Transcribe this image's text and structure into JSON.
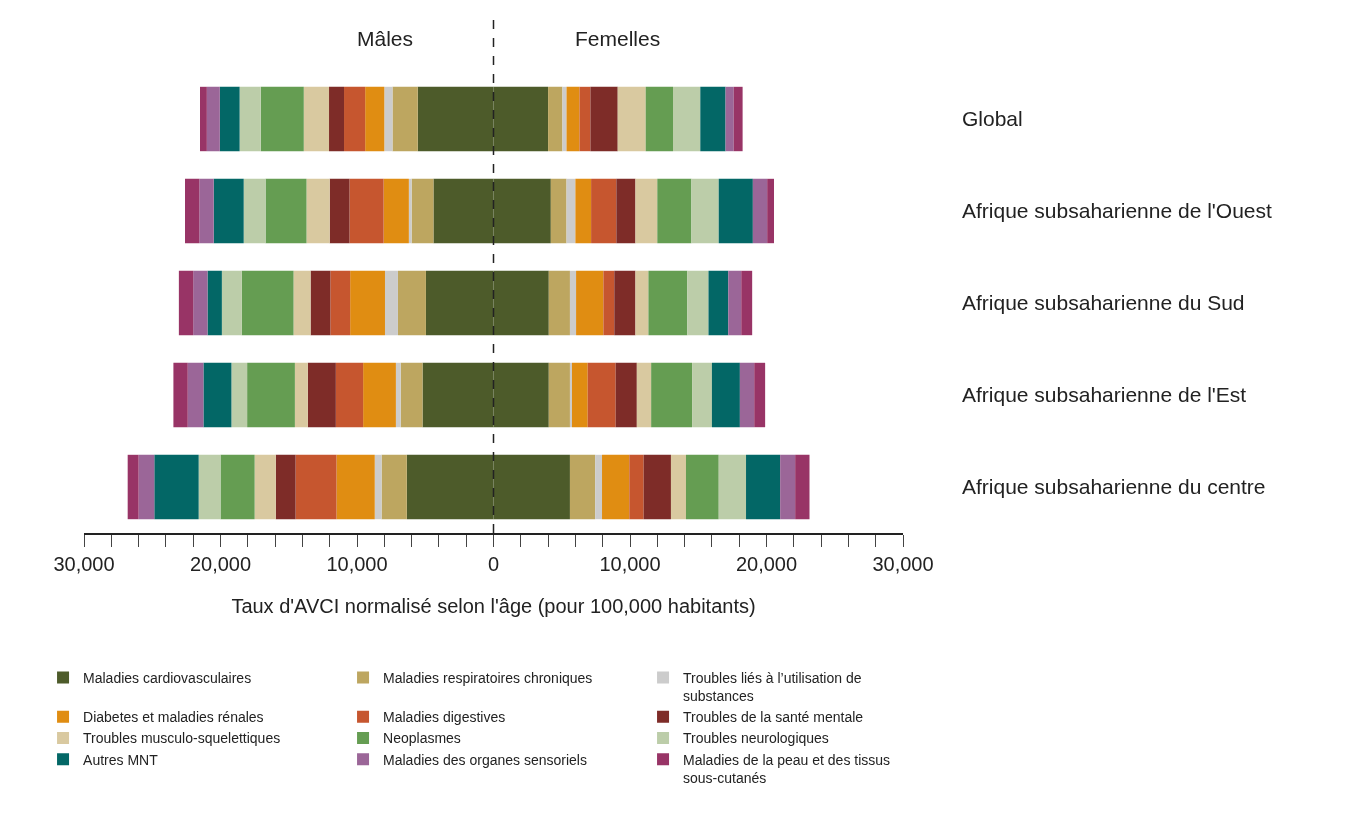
{
  "chart_data": {
    "type": "bar",
    "orientation": "horizontal",
    "stacked": true,
    "xlabel": "Taux d'AVCI normalisé selon l'âge (pour 100,000 habitants)",
    "annotations": [
      "Mâles",
      "Femelles"
    ],
    "categories": [
      "Global",
      "Afrique subsaharienne de l'Ouest",
      "Afrique subsaharienne du Sud",
      "Afrique subsaharienne de l'Est",
      "Afrique subsaharienne du centre"
    ],
    "xlim": [
      -30000,
      30000
    ],
    "xticks": [
      {
        "value": -30000,
        "label": "30,000"
      },
      {
        "value": -28000,
        "label": null
      },
      {
        "value": -26000,
        "label": null
      },
      {
        "value": -24000,
        "label": null
      },
      {
        "value": -22000,
        "label": null
      },
      {
        "value": -20000,
        "label": "20,000"
      },
      {
        "value": -18000,
        "label": null
      },
      {
        "value": -16000,
        "label": null
      },
      {
        "value": -14000,
        "label": null
      },
      {
        "value": -12000,
        "label": null
      },
      {
        "value": -10000,
        "label": "10,000"
      },
      {
        "value": -8000,
        "label": null
      },
      {
        "value": -6000,
        "label": null
      },
      {
        "value": -4000,
        "label": null
      },
      {
        "value": -2000,
        "label": null
      },
      0,
      {
        "value": 2000,
        "label": null
      },
      {
        "value": 4000,
        "label": null
      },
      {
        "value": 6000,
        "label": null
      },
      {
        "value": 8000,
        "label": null
      },
      {
        "value": 10000,
        "label": "10,000"
      },
      {
        "value": 12000,
        "label": null
      },
      {
        "value": 14000,
        "label": null
      },
      {
        "value": 16000,
        "label": null
      },
      {
        "value": 18000,
        "label": null
      },
      {
        "value": 20000,
        "label": "20,000"
      },
      {
        "value": 22000,
        "label": null
      },
      {
        "value": 24000,
        "label": null
      },
      {
        "value": 26000,
        "label": null
      },
      {
        "value": 28000,
        "label": null
      },
      {
        "value": 30000,
        "label": "30,000"
      }
    ],
    "ref_lines": [
      {
        "axis": "x",
        "value": 0,
        "label": null,
        "color": "#222222",
        "line_style": "dashed"
      }
    ],
    "grid": false,
    "legend": "bottom",
    "series": [
      {
        "name": "Maladies cardiovasculaires",
        "color": "#4d5b2a",
        "values": [
          -5550,
          -4400,
          -4950,
          -5200,
          -6350
        ]
      },
      {
        "name": "Maladies respiratoires chroniques",
        "color": "#bda660",
        "values": [
          -1850,
          -1600,
          -2050,
          -1600,
          -1850
        ]
      },
      {
        "name": "Troubles liés à l’utilisation de substances",
        "color": "#cccccc",
        "values": [
          -600,
          -200,
          -950,
          -350,
          -500
        ]
      },
      {
        "name": "Diabetes et maladies rénales",
        "color": "#e08d12",
        "values": [
          -1400,
          -1850,
          -2550,
          -2400,
          -2800
        ]
      },
      {
        "name": "Maladies digestives",
        "color": "#c6562f",
        "values": [
          -1550,
          -2500,
          -1450,
          -2000,
          -3000
        ]
      },
      {
        "name": "Troubles de la santé mentale",
        "color": "#7e2c28",
        "values": [
          -1100,
          -1450,
          -1450,
          -2050,
          -1450
        ]
      },
      {
        "name": "Troubles musculo-squelettiques",
        "color": "#d9c9a0",
        "values": [
          -1850,
          -1700,
          -1250,
          -950,
          -1550
        ]
      },
      {
        "name": "Neoplasmes",
        "color": "#659d52",
        "values": [
          -3150,
          -3000,
          -3800,
          -3500,
          -2500
        ]
      },
      {
        "name": "Troubles neurologiques",
        "color": "#bccda9",
        "values": [
          -1550,
          -1600,
          -1450,
          -1150,
          -1600
        ]
      },
      {
        "name": "Autres MNT",
        "color": "#036766",
        "values": [
          -1450,
          -2200,
          -1050,
          -2050,
          -3250
        ]
      },
      {
        "name": "Maladies des organes sensoriels",
        "color": "#9b6698",
        "values": [
          -950,
          -1050,
          -1050,
          -1150,
          -1150
        ]
      },
      {
        "name": "Maladies de la peau et des tissus sous-cutanés",
        "color": "#983466",
        "values": [
          -500,
          -1050,
          -1050,
          -1050,
          -800
        ]
      },
      {
        "color": "#4d5b2a",
        "values": [
          4000,
          4200,
          4050,
          4050,
          5600
        ]
      },
      {
        "color": "#bda660",
        "values": [
          1050,
          1150,
          1550,
          1550,
          1850
        ]
      },
      {
        "color": "#cccccc",
        "values": [
          300,
          650,
          450,
          150,
          500
        ]
      },
      {
        "color": "#e08d12",
        "values": [
          950,
          1150,
          2000,
          1150,
          2000
        ]
      },
      {
        "color": "#c6562f",
        "values": [
          800,
          1850,
          800,
          2050,
          1050
        ]
      },
      {
        "color": "#7e2c28",
        "values": [
          2000,
          1400,
          1550,
          1550,
          2000
        ]
      },
      {
        "color": "#d9c9a0",
        "values": [
          2050,
          1600,
          950,
          1050,
          1100
        ]
      },
      {
        "color": "#659d52",
        "values": [
          2000,
          2500,
          2850,
          3000,
          2400
        ]
      },
      {
        "color": "#bccda9",
        "values": [
          2000,
          2000,
          1550,
          1450,
          2000
        ]
      },
      {
        "color": "#036766",
        "values": [
          1850,
          2500,
          1450,
          2050,
          2500
        ]
      },
      {
        "color": "#9b6698",
        "values": [
          600,
          1050,
          950,
          1050,
          1100
        ]
      },
      {
        "color": "#983466",
        "values": [
          650,
          500,
          800,
          800,
          1050
        ]
      }
    ]
  }
}
